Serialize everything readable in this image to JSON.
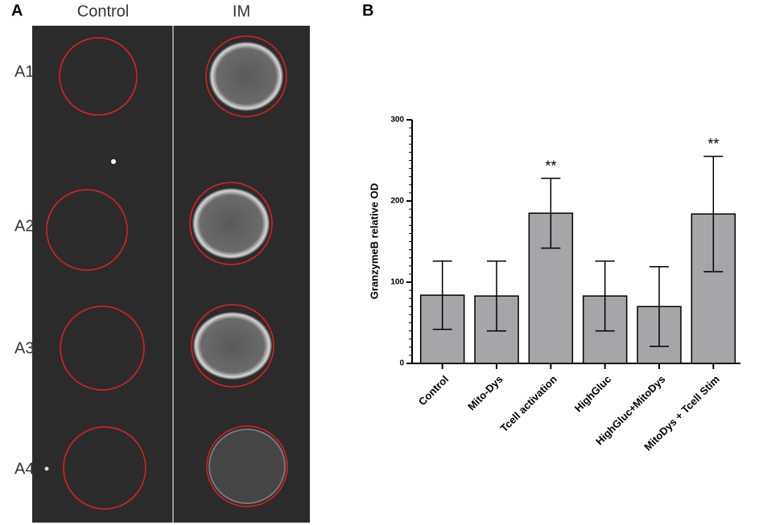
{
  "panel_a": {
    "label": "A",
    "columns": [
      "Control",
      "IM"
    ],
    "rows": [
      "A1",
      "A2",
      "A3",
      "A4"
    ]
  },
  "chart_data": {
    "type": "bar",
    "panel_label": "B",
    "ylabel": "GranzymeB relative OD",
    "categories": [
      "Control",
      "Mito-Dys",
      "Tcell activation",
      "HighGluc",
      "HighGluc+MitoDys",
      "MitoDys + Tcell Stim"
    ],
    "values": [
      84,
      83,
      185,
      83,
      70,
      184
    ],
    "errors": [
      42,
      43,
      43,
      43,
      49,
      71
    ],
    "annotations": [
      null,
      null,
      "**",
      null,
      null,
      "**"
    ],
    "color": "#a6a6a8",
    "ylim": [
      0,
      300
    ],
    "yticks": [
      0,
      100,
      200,
      300
    ]
  }
}
